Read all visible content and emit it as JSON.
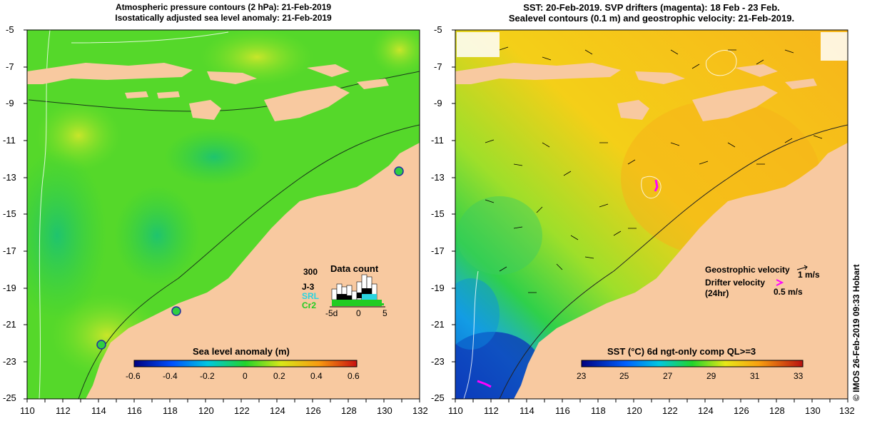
{
  "left_panel": {
    "title_line1": "Atmospheric pressure contours (2 hPa): 21-Feb-2019",
    "title_line2": "Isostatically adjusted sea level anomaly: 21-Feb-2019",
    "colorbar_title": "Sea level anomaly (m)",
    "colorbar_ticks": [
      "-0.6",
      "-0.4",
      "-0.2",
      "0",
      "0.2",
      "0.4",
      "0.6"
    ],
    "inset": {
      "title": "Data count",
      "y_max": "300",
      "series_labels": [
        "J-3",
        "SRL",
        "Cr2"
      ],
      "x_ticks": [
        "-5d",
        "0",
        "5"
      ]
    }
  },
  "right_panel": {
    "title_line1": "SST: 20-Feb-2019. SVP drifters (magenta): 18 Feb - 23 Feb.",
    "title_line2": "Sealevel contours (0.1 m) and geostrophic velocity: 21-Feb-2019.",
    "colorbar_title": "SST (°C) 6d ngt-only comp QL>=3",
    "colorbar_ticks": [
      "23",
      "25",
      "27",
      "29",
      "31",
      "33"
    ],
    "geo_velocity_label": "Geostrophic velocity",
    "geo_velocity_scale": "1 m/s",
    "drifter_label_line1": "Drifter velocity",
    "drifter_label_line2": "(24hr)",
    "drifter_scale": "0.5 m/s"
  },
  "y_ticks": [
    "-5",
    "-7",
    "-9",
    "-11",
    "-13",
    "-15",
    "-17",
    "-19",
    "-21",
    "-23",
    "-25"
  ],
  "x_ticks": [
    "110",
    "112",
    "114",
    "116",
    "118",
    "120",
    "122",
    "124",
    "126",
    "128",
    "130",
    "132"
  ],
  "credit": "© IMOS 26-Feb-2019 09:33 Hobart",
  "colors": {
    "land": "#f8c9a0",
    "sea_level_base": "#3fd52a",
    "sst_base": "#f6cf10",
    "drifter": "#ff00ff"
  }
}
